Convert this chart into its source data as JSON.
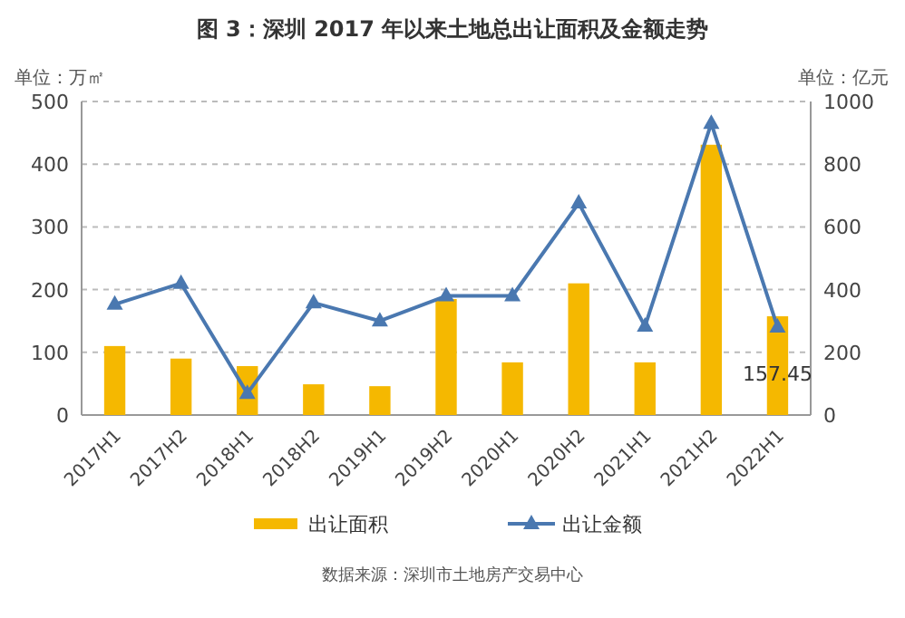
{
  "chart_data": {
    "type": "bar",
    "title": "图 3：深圳 2017 年以来土地总出让面积及金额走势",
    "ylabel": "单位：万㎡",
    "y2label": "单位：亿元",
    "categories": [
      "2017H1",
      "2017H2",
      "2018H1",
      "2018H2",
      "2019H1",
      "2019H2",
      "2020H1",
      "2020H2",
      "2021H1",
      "2021H2",
      "2022H1"
    ],
    "series": [
      {
        "name": "出让面积",
        "color": "#f5b800",
        "values": [
          110,
          90,
          78,
          49,
          46,
          185,
          84,
          210,
          84,
          431,
          157.45
        ],
        "value_labels": [
          null,
          null,
          null,
          null,
          null,
          null,
          null,
          null,
          null,
          null,
          "157.45"
        ]
      },
      {
        "name": "出让金额",
        "type": "line",
        "axis": "y2",
        "color": "#4a78b0",
        "marker": "triangle",
        "values": [
          353,
          420,
          69,
          358,
          300,
          380,
          380,
          676,
          283,
          930,
          280
        ]
      }
    ],
    "ylim": [
      0,
      500
    ],
    "yticks": [
      0,
      100,
      200,
      300,
      400,
      500
    ],
    "y2lim": [
      0,
      1000
    ],
    "y2ticks": [
      0,
      200,
      400,
      600,
      800,
      1000
    ],
    "grid": "y",
    "legend": "bottom",
    "annotations": [
      "数据来源：深圳市土地房产交易中心"
    ]
  }
}
